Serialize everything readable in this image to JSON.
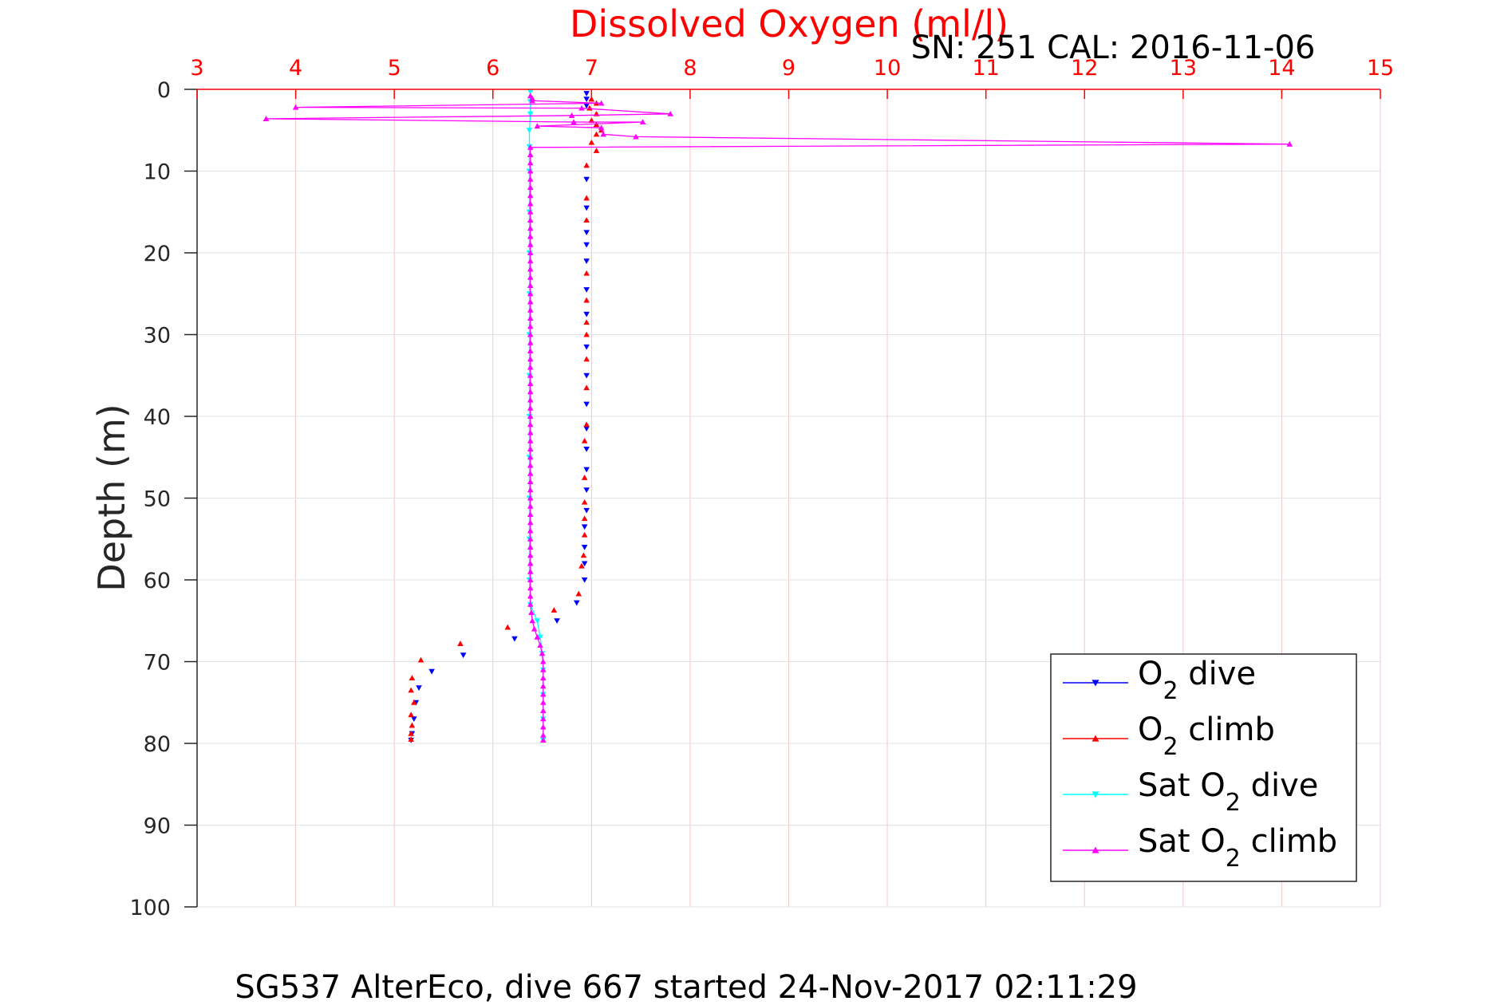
{
  "chart_data": {
    "type": "scatter",
    "title": "Dissolved Oxygen (ml/l)",
    "subtitle": "SN: 251  CAL: 2016-11-06",
    "xlabel": "Dissolved Oxygen (ml/l)",
    "ylabel": "Depth (m)",
    "caption": "SG537 AlterEco, dive 667 started 24-Nov-2017 02:11:29",
    "xlim": [
      3,
      15
    ],
    "ylim": [
      0,
      100
    ],
    "y_reversed": true,
    "x_axis_position": "top",
    "grid": true,
    "legend_position": "bottom-right",
    "xticks": [
      "3",
      "4",
      "5",
      "6",
      "7",
      "8",
      "9",
      "10",
      "11",
      "12",
      "13",
      "14",
      "15"
    ],
    "yticks": [
      "0",
      "10",
      "20",
      "30",
      "40",
      "50",
      "60",
      "70",
      "80",
      "90",
      "100"
    ],
    "colors": {
      "title": "#ff0000",
      "x_ticks": "#ff0000",
      "grid": "#f5c6c6",
      "axis": "#000000"
    },
    "series": [
      {
        "legend_main": "O",
        "legend_sub": "2",
        "legend_after": " dive",
        "color": "#0000ff",
        "marker": "down-triangle",
        "connected": false,
        "points": [
          [
            6.95,
            0.5
          ],
          [
            6.95,
            1.2
          ],
          [
            6.95,
            2.0
          ],
          [
            6.95,
            11.0
          ],
          [
            6.95,
            14.5
          ],
          [
            6.95,
            17.5
          ],
          [
            6.95,
            19.0
          ],
          [
            6.95,
            21.0
          ],
          [
            6.95,
            24.5
          ],
          [
            6.95,
            27.5
          ],
          [
            6.95,
            31.5
          ],
          [
            6.95,
            35.0
          ],
          [
            6.95,
            38.5
          ],
          [
            6.95,
            41.5
          ],
          [
            6.95,
            44.0
          ],
          [
            6.95,
            46.5
          ],
          [
            6.95,
            49.0
          ],
          [
            6.95,
            51.5
          ],
          [
            6.93,
            53.5
          ],
          [
            6.93,
            56.0
          ],
          [
            6.93,
            58.0
          ],
          [
            6.93,
            60.0
          ],
          [
            6.85,
            62.8
          ],
          [
            6.65,
            65.0
          ],
          [
            6.22,
            67.2
          ],
          [
            5.7,
            69.2
          ],
          [
            5.38,
            71.2
          ],
          [
            5.25,
            73.2
          ],
          [
            5.22,
            75.0
          ],
          [
            5.2,
            77.0
          ],
          [
            5.18,
            78.8
          ],
          [
            5.17,
            79.6
          ]
        ]
      },
      {
        "legend_main": "O",
        "legend_sub": "2",
        "legend_after": " climb",
        "color": "#ff0000",
        "marker": "up-triangle",
        "connected": false,
        "points": [
          [
            7.0,
            1.2
          ],
          [
            7.05,
            1.7
          ],
          [
            6.98,
            2.3
          ],
          [
            7.05,
            3.0
          ],
          [
            7.0,
            3.8
          ],
          [
            7.05,
            4.3
          ],
          [
            7.1,
            5.0
          ],
          [
            7.05,
            5.5
          ],
          [
            7.0,
            6.5
          ],
          [
            7.05,
            7.5
          ],
          [
            6.95,
            9.3
          ],
          [
            6.95,
            13.3
          ],
          [
            6.95,
            16.0
          ],
          [
            6.95,
            22.5
          ],
          [
            6.95,
            25.8
          ],
          [
            6.95,
            28.5
          ],
          [
            6.95,
            30.0
          ],
          [
            6.95,
            33.0
          ],
          [
            6.95,
            36.5
          ],
          [
            6.95,
            41.0
          ],
          [
            6.93,
            43.0
          ],
          [
            6.93,
            47.5
          ],
          [
            6.93,
            50.5
          ],
          [
            6.93,
            52.5
          ],
          [
            6.93,
            54.5
          ],
          [
            6.92,
            57.0
          ],
          [
            6.9,
            58.3
          ],
          [
            6.87,
            61.7
          ],
          [
            6.62,
            63.7
          ],
          [
            6.15,
            65.8
          ],
          [
            5.67,
            67.8
          ],
          [
            5.27,
            69.8
          ],
          [
            5.18,
            72.0
          ],
          [
            5.17,
            73.5
          ],
          [
            5.2,
            75.0
          ],
          [
            5.17,
            76.5
          ],
          [
            5.18,
            77.8
          ],
          [
            5.17,
            78.8
          ],
          [
            5.17,
            79.5
          ]
        ]
      },
      {
        "legend_main": "Sat O",
        "legend_sub": "2",
        "legend_after": " dive",
        "color": "#00ffff",
        "marker": "down-triangle",
        "connected": true,
        "points": [
          [
            6.38,
            0.3
          ],
          [
            6.38,
            1.5
          ],
          [
            6.38,
            3.0
          ],
          [
            6.37,
            5.0
          ],
          [
            6.37,
            7.0
          ],
          [
            6.37,
            10
          ],
          [
            6.37,
            15
          ],
          [
            6.37,
            20
          ],
          [
            6.37,
            25
          ],
          [
            6.37,
            30
          ],
          [
            6.37,
            35
          ],
          [
            6.37,
            40
          ],
          [
            6.37,
            45
          ],
          [
            6.37,
            50
          ],
          [
            6.37,
            55
          ],
          [
            6.37,
            60
          ],
          [
            6.38,
            63
          ],
          [
            6.45,
            65
          ],
          [
            6.48,
            67
          ],
          [
            6.5,
            69
          ],
          [
            6.51,
            71
          ],
          [
            6.51,
            74
          ],
          [
            6.51,
            77
          ],
          [
            6.51,
            79.6
          ]
        ]
      },
      {
        "legend_main": "Sat O",
        "legend_sub": "2",
        "legend_after": " climb",
        "color": "#ff00ff",
        "marker": "up-triangle",
        "connected": true,
        "points": [
          [
            6.38,
            0.8
          ],
          [
            6.4,
            1.1
          ],
          [
            6.4,
            1.4
          ],
          [
            7.1,
            1.7
          ],
          [
            4.0,
            2.2
          ],
          [
            6.9,
            2.3
          ],
          [
            7.8,
            3.0
          ],
          [
            6.8,
            3.2
          ],
          [
            3.7,
            3.6
          ],
          [
            6.82,
            4.0
          ],
          [
            7.52,
            4.0
          ],
          [
            6.45,
            4.5
          ],
          [
            7.1,
            4.7
          ],
          [
            7.12,
            5.5
          ],
          [
            7.45,
            5.8
          ],
          [
            14.08,
            6.7
          ],
          [
            6.38,
            7.1
          ],
          [
            6.38,
            8
          ],
          [
            6.38,
            9
          ],
          [
            6.38,
            10
          ],
          [
            6.38,
            11
          ],
          [
            6.38,
            12
          ],
          [
            6.38,
            13
          ],
          [
            6.38,
            14
          ],
          [
            6.38,
            15
          ],
          [
            6.38,
            16
          ],
          [
            6.38,
            17
          ],
          [
            6.38,
            18
          ],
          [
            6.38,
            19
          ],
          [
            6.38,
            20
          ],
          [
            6.38,
            21
          ],
          [
            6.38,
            22
          ],
          [
            6.38,
            23
          ],
          [
            6.38,
            24
          ],
          [
            6.38,
            25
          ],
          [
            6.38,
            26
          ],
          [
            6.38,
            27
          ],
          [
            6.38,
            28
          ],
          [
            6.38,
            29
          ],
          [
            6.38,
            30
          ],
          [
            6.38,
            31
          ],
          [
            6.38,
            32
          ],
          [
            6.38,
            33
          ],
          [
            6.38,
            34
          ],
          [
            6.38,
            35
          ],
          [
            6.38,
            36
          ],
          [
            6.38,
            37
          ],
          [
            6.38,
            38
          ],
          [
            6.38,
            39
          ],
          [
            6.38,
            40
          ],
          [
            6.38,
            41
          ],
          [
            6.38,
            42
          ],
          [
            6.38,
            43
          ],
          [
            6.38,
            44
          ],
          [
            6.38,
            45
          ],
          [
            6.38,
            46
          ],
          [
            6.38,
            47
          ],
          [
            6.38,
            48
          ],
          [
            6.38,
            49
          ],
          [
            6.38,
            50
          ],
          [
            6.38,
            51
          ],
          [
            6.38,
            52
          ],
          [
            6.38,
            53
          ],
          [
            6.38,
            54
          ],
          [
            6.38,
            55
          ],
          [
            6.38,
            56
          ],
          [
            6.38,
            57
          ],
          [
            6.38,
            58
          ],
          [
            6.38,
            59
          ],
          [
            6.38,
            60
          ],
          [
            6.38,
            61
          ],
          [
            6.38,
            62
          ],
          [
            6.38,
            63
          ],
          [
            6.39,
            64
          ],
          [
            6.4,
            65
          ],
          [
            6.42,
            66
          ],
          [
            6.45,
            67
          ],
          [
            6.48,
            68
          ],
          [
            6.5,
            69
          ],
          [
            6.51,
            70
          ],
          [
            6.51,
            71
          ],
          [
            6.51,
            72
          ],
          [
            6.51,
            73
          ],
          [
            6.51,
            74
          ],
          [
            6.51,
            75
          ],
          [
            6.51,
            76
          ],
          [
            6.51,
            77
          ],
          [
            6.51,
            78
          ],
          [
            6.51,
            79
          ],
          [
            6.51,
            79.6
          ]
        ]
      }
    ]
  }
}
